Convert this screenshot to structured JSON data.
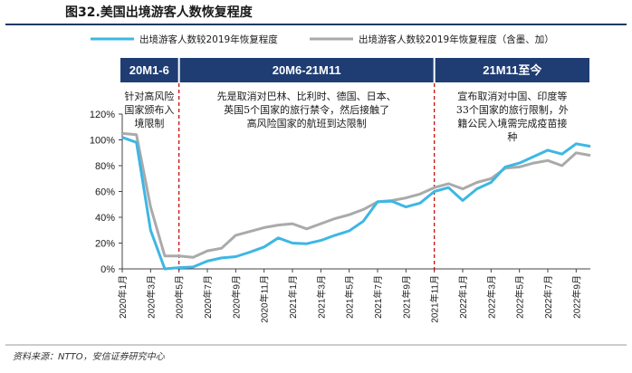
{
  "header": {
    "title": "图32.美国出境游客人数恢复程度"
  },
  "source": "资料来源：NTTO，安信证券研究中心",
  "colors": {
    "title_rule": "#1f3864",
    "band": "#1f3d73",
    "series_main": "#3db7e4",
    "series_alt": "#aaaaaa",
    "divider": "#c00000",
    "axis": "#444444"
  },
  "chart_data": {
    "type": "line",
    "title": "",
    "xlabel": "",
    "ylabel": "",
    "ylim": [
      0,
      120
    ],
    "yticks": [
      "0%",
      "20%",
      "40%",
      "60%",
      "80%",
      "100%",
      "120%"
    ],
    "grid": false,
    "legend_position": "top",
    "x": [
      "2020-01",
      "2020-02",
      "2020-03",
      "2020-04",
      "2020-05",
      "2020-06",
      "2020-07",
      "2020-08",
      "2020-09",
      "2020-10",
      "2020-11",
      "2020-12",
      "2021-01",
      "2021-02",
      "2021-03",
      "2021-04",
      "2021-05",
      "2021-06",
      "2021-07",
      "2021-08",
      "2021-09",
      "2021-10",
      "2021-11",
      "2021-12",
      "2022-01",
      "2022-02",
      "2022-03",
      "2022-04",
      "2022-05",
      "2022-06",
      "2022-07",
      "2022-08",
      "2022-09",
      "2022-10"
    ],
    "xtick_labels": [
      "2020年1月",
      "2020年3月",
      "2020年5月",
      "2020年7月",
      "2020年9月",
      "2020年11月",
      "2021年1月",
      "2021年3月",
      "2021年5月",
      "2021年7月",
      "2021年9月",
      "2021年11月",
      "2022年1月",
      "2022年3月",
      "2022年5月",
      "2022年7月",
      "2022年9月"
    ],
    "series": [
      {
        "name": "出境游客人数较2019年恢复程度",
        "values": [
          102,
          98,
          30,
          0,
          1,
          1.5,
          6,
          8.5,
          9.5,
          13,
          17,
          24,
          20,
          19.5,
          22,
          26,
          29.5,
          37,
          52,
          52.5,
          48,
          51,
          60,
          63,
          53,
          62,
          67,
          79,
          82,
          87,
          92,
          89,
          97,
          95
        ]
      },
      {
        "name": "出境游客人数较2019年恢复程度（含墨、加）",
        "values": [
          105,
          104,
          48,
          10,
          10,
          9,
          14,
          16,
          26,
          29,
          32,
          34,
          35,
          31,
          35,
          39,
          42,
          46,
          52,
          53,
          55,
          58,
          63,
          66,
          62,
          67,
          70,
          78,
          79,
          82,
          84,
          80,
          90,
          88
        ]
      }
    ],
    "dividers_x": [
      "2020-05",
      "2021-11"
    ],
    "periods": [
      {
        "label": "20M1-6",
        "from": "2020-01",
        "to": "2020-05"
      },
      {
        "label": "20M6-21M11",
        "from": "2020-05",
        "to": "2021-11"
      },
      {
        "label": "21M11至今",
        "from": "2021-11",
        "to": "2022-10"
      }
    ],
    "annotations": [
      {
        "period": 0,
        "lines": [
          "针对高风险",
          "国家颁布入",
          "境限制"
        ]
      },
      {
        "period": 1,
        "lines": [
          "先是取消对巴林、比利时、德国、日本、",
          "英国5个国家的旅行禁令，然后接触了",
          "高风险国家的航班到达限制"
        ]
      },
      {
        "period": 2,
        "lines": [
          "宣布取消对中国、印度等",
          "33个国家的旅行限制，外",
          "籍公民入境需完成疫苗接",
          "种"
        ]
      }
    ]
  }
}
